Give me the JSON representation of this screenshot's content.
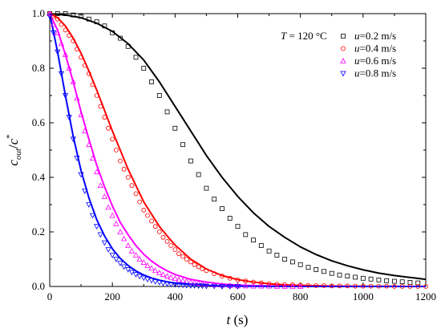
{
  "chart_data": {
    "type": "scatter",
    "xlabel": "t (s)",
    "ylabel": "c_out/c*",
    "xlim": [
      0,
      1200
    ],
    "ylim": [
      0,
      1.0
    ],
    "x_ticks": [
      "0",
      "200",
      "400",
      "600",
      "800",
      "1000",
      "1200"
    ],
    "y_ticks": [
      "0.0",
      "0.2",
      "0.4",
      "0.6",
      "0.8",
      "1.0"
    ],
    "grid": false,
    "legend_position": "top-right",
    "annotation": "T = 120 °C",
    "series": [
      {
        "name": "u=0.2 m/s",
        "color": "#000000",
        "marker": "square",
        "x": [
          0,
          25,
          50,
          75,
          100,
          125,
          150,
          175,
          200,
          225,
          250,
          275,
          300,
          325,
          350,
          375,
          400,
          425,
          450,
          475,
          500,
          525,
          550,
          575,
          600,
          625,
          650,
          675,
          700,
          725,
          750,
          775,
          800,
          825,
          850,
          875,
          900,
          925,
          950,
          975,
          1000,
          1025,
          1050,
          1075,
          1100,
          1125,
          1150,
          1175
        ],
        "y": [
          1.0,
          1.0,
          1.0,
          0.995,
          0.99,
          0.98,
          0.97,
          0.955,
          0.93,
          0.91,
          0.88,
          0.84,
          0.8,
          0.75,
          0.7,
          0.64,
          0.58,
          0.52,
          0.46,
          0.41,
          0.36,
          0.32,
          0.285,
          0.25,
          0.22,
          0.19,
          0.17,
          0.15,
          0.13,
          0.115,
          0.1,
          0.09,
          0.08,
          0.07,
          0.062,
          0.055,
          0.048,
          0.042,
          0.038,
          0.034,
          0.03,
          0.027,
          0.024,
          0.021,
          0.019,
          0.017,
          0.015,
          0.013
        ]
      },
      {
        "name": "u=0.4 m/s",
        "color": "#ff0000",
        "marker": "circle",
        "x": [
          0,
          12,
          25,
          37,
          50,
          62,
          75,
          87,
          100,
          112,
          125,
          137,
          150,
          162,
          175,
          187,
          200,
          212,
          225,
          237,
          250,
          262,
          275,
          287,
          300,
          312,
          325,
          337,
          350,
          362,
          375,
          387,
          400,
          412,
          425,
          437,
          450,
          462,
          475,
          487,
          500,
          525,
          550,
          575,
          600,
          625,
          650,
          675,
          700,
          725,
          750,
          775,
          800,
          825,
          850,
          875,
          900,
          925,
          950,
          975,
          1000,
          1025,
          1050,
          1075,
          1100,
          1125,
          1150,
          1175,
          1200
        ],
        "y": [
          1.0,
          0.99,
          0.98,
          0.96,
          0.94,
          0.92,
          0.9,
          0.87,
          0.84,
          0.81,
          0.78,
          0.74,
          0.7,
          0.66,
          0.62,
          0.58,
          0.54,
          0.5,
          0.46,
          0.43,
          0.4,
          0.37,
          0.34,
          0.31,
          0.28,
          0.26,
          0.24,
          0.22,
          0.2,
          0.18,
          0.165,
          0.15,
          0.135,
          0.12,
          0.11,
          0.1,
          0.09,
          0.08,
          0.072,
          0.065,
          0.058,
          0.047,
          0.038,
          0.03,
          0.024,
          0.02,
          0.016,
          0.013,
          0.01,
          0.008,
          0.007,
          0.006,
          0.005,
          0.004,
          0.003,
          0.003,
          0.002,
          0.002,
          0.002,
          0.001,
          0.001,
          0.001,
          0.001,
          0.001,
          0.0,
          0.0,
          0.0,
          0.0,
          0.0
        ]
      },
      {
        "name": "u=0.6 m/s",
        "color": "#ff00ff",
        "marker": "triangle-up",
        "x": [
          0,
          12,
          25,
          37,
          50,
          62,
          75,
          87,
          100,
          112,
          125,
          137,
          150,
          162,
          175,
          187,
          200,
          212,
          225,
          237,
          250,
          262,
          275,
          287,
          300,
          312,
          325,
          337,
          350,
          362,
          375,
          387,
          400,
          412,
          425,
          437,
          450,
          462,
          475,
          487,
          500,
          525,
          550,
          575,
          600,
          625,
          650,
          675,
          700,
          725,
          750,
          775,
          800
        ],
        "y": [
          1.0,
          0.96,
          0.93,
          0.89,
          0.85,
          0.8,
          0.75,
          0.69,
          0.63,
          0.57,
          0.52,
          0.47,
          0.42,
          0.37,
          0.33,
          0.29,
          0.26,
          0.23,
          0.2,
          0.175,
          0.15,
          0.13,
          0.115,
          0.1,
          0.088,
          0.077,
          0.067,
          0.058,
          0.05,
          0.044,
          0.038,
          0.033,
          0.029,
          0.025,
          0.022,
          0.019,
          0.016,
          0.014,
          0.012,
          0.01,
          0.009,
          0.006,
          0.005,
          0.003,
          0.002,
          0.002,
          0.001,
          0.001,
          0.001,
          0.0,
          0.0,
          0.0,
          0.0
        ]
      },
      {
        "name": "u=0.8 m/s",
        "color": "#0000ff",
        "marker": "triangle-down",
        "x": [
          0,
          12,
          25,
          37,
          50,
          62,
          75,
          87,
          100,
          112,
          125,
          137,
          150,
          162,
          175,
          187,
          200,
          212,
          225,
          237,
          250,
          262,
          275,
          287,
          300,
          312,
          325,
          337,
          350,
          362,
          375,
          387,
          400,
          412,
          425,
          437,
          450,
          462,
          475,
          487,
          500,
          525,
          550,
          575,
          600
        ],
        "y": [
          0.99,
          0.93,
          0.86,
          0.78,
          0.7,
          0.62,
          0.54,
          0.47,
          0.41,
          0.35,
          0.3,
          0.26,
          0.22,
          0.19,
          0.16,
          0.135,
          0.115,
          0.1,
          0.085,
          0.072,
          0.062,
          0.052,
          0.044,
          0.037,
          0.031,
          0.026,
          0.022,
          0.018,
          0.015,
          0.012,
          0.01,
          0.008,
          0.007,
          0.006,
          0.005,
          0.004,
          0.003,
          0.003,
          0.002,
          0.002,
          0.001,
          0.001,
          0.0,
          0.0,
          0.0
        ]
      }
    ],
    "fits": [
      {
        "color": "#000000",
        "x": [
          0,
          50,
          100,
          150,
          200,
          250,
          300,
          350,
          400,
          450,
          500,
          550,
          600,
          650,
          700,
          750,
          800,
          850,
          900,
          950,
          1000,
          1050,
          1100,
          1150,
          1200
        ],
        "y": [
          1.0,
          0.995,
          0.985,
          0.965,
          0.935,
          0.89,
          0.83,
          0.75,
          0.66,
          0.57,
          0.48,
          0.4,
          0.33,
          0.27,
          0.22,
          0.18,
          0.145,
          0.117,
          0.094,
          0.076,
          0.061,
          0.049,
          0.04,
          0.033,
          0.026
        ]
      },
      {
        "color": "#ff0000",
        "x": [
          0,
          25,
          50,
          75,
          100,
          125,
          150,
          175,
          200,
          225,
          250,
          275,
          300,
          325,
          350,
          375,
          400,
          450,
          500,
          550,
          600,
          650,
          700,
          750,
          800,
          900,
          1000,
          1100,
          1200
        ],
        "y": [
          1.0,
          0.985,
          0.955,
          0.91,
          0.855,
          0.79,
          0.72,
          0.645,
          0.57,
          0.5,
          0.43,
          0.37,
          0.31,
          0.265,
          0.22,
          0.185,
          0.152,
          0.1,
          0.064,
          0.04,
          0.025,
          0.016,
          0.01,
          0.006,
          0.004,
          0.0015,
          0.0006,
          0.0002,
          0.0001
        ]
      },
      {
        "color": "#ff00ff",
        "x": [
          0,
          25,
          50,
          75,
          100,
          125,
          150,
          175,
          200,
          225,
          250,
          275,
          300,
          325,
          350,
          375,
          400,
          450,
          500,
          550,
          600,
          650,
          700,
          800,
          900,
          1000,
          1100,
          1200
        ],
        "y": [
          1.0,
          0.94,
          0.85,
          0.75,
          0.64,
          0.54,
          0.445,
          0.365,
          0.295,
          0.235,
          0.19,
          0.15,
          0.118,
          0.093,
          0.073,
          0.057,
          0.044,
          0.026,
          0.016,
          0.009,
          0.005,
          0.003,
          0.002,
          0.0006,
          0.0002,
          0.0001,
          0.0,
          0.0
        ]
      },
      {
        "color": "#0000ff",
        "x": [
          0,
          25,
          50,
          75,
          100,
          125,
          150,
          175,
          200,
          225,
          250,
          275,
          300,
          325,
          350,
          375,
          400,
          450,
          500,
          550,
          600,
          700,
          800,
          900,
          1000,
          1100,
          1200
        ],
        "y": [
          1.0,
          0.86,
          0.7,
          0.55,
          0.425,
          0.325,
          0.245,
          0.185,
          0.138,
          0.103,
          0.077,
          0.057,
          0.042,
          0.031,
          0.023,
          0.017,
          0.012,
          0.007,
          0.004,
          0.002,
          0.001,
          0.0003,
          0.0001,
          0.0,
          0.0,
          0.0,
          0.0
        ]
      }
    ]
  }
}
